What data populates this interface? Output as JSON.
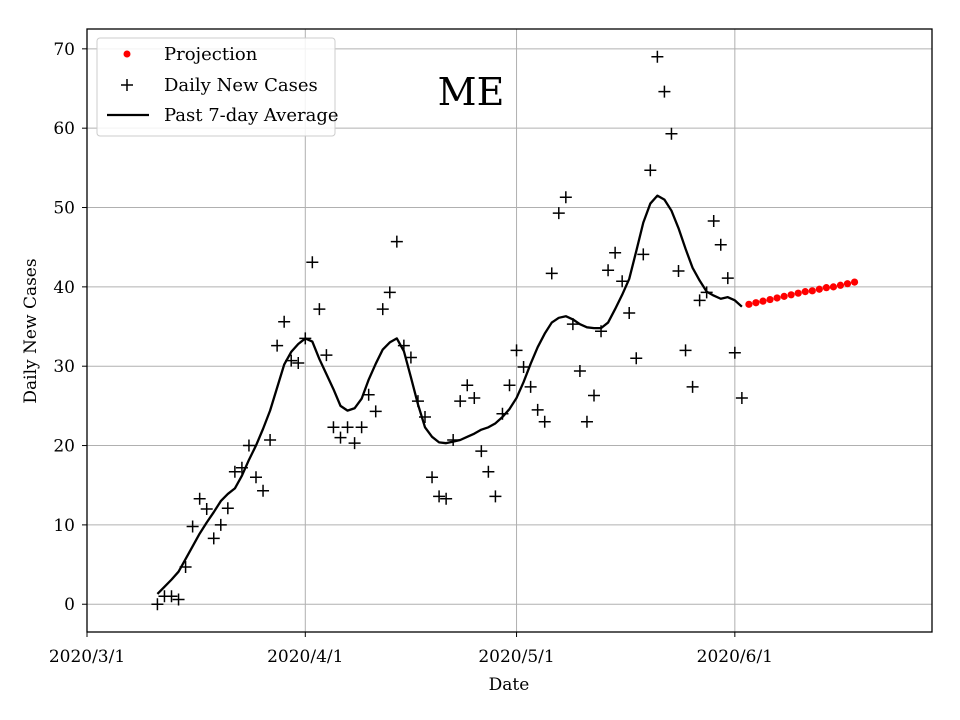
{
  "chart_data": {
    "type": "line",
    "title": "ME",
    "xlabel": "Date",
    "ylabel": "Daily New Cases",
    "x_domain_days": [
      0,
      120
    ],
    "ylim": [
      -3.5,
      72.5
    ],
    "xticks": [
      {
        "day": 0,
        "label": "2020/3/1"
      },
      {
        "day": 31,
        "label": "2020/4/1"
      },
      {
        "day": 61,
        "label": "2020/5/1"
      },
      {
        "day": 92,
        "label": "2020/6/1"
      }
    ],
    "yticks": [
      0,
      10,
      20,
      30,
      40,
      50,
      60,
      70
    ],
    "grid": true,
    "legend_position": "top-left",
    "series": [
      {
        "name": "Projection",
        "kind": "dots",
        "color": "#ff0000",
        "start_day": 94,
        "values": [
          37.8,
          38.0,
          38.2,
          38.4,
          38.6,
          38.8,
          39.0,
          39.2,
          39.4,
          39.5,
          39.7,
          39.9,
          40.0,
          40.2,
          40.4,
          40.6
        ]
      },
      {
        "name": "Daily New Cases",
        "kind": "plus",
        "color": "#000000",
        "start_day": 10,
        "values": [
          0,
          1,
          1,
          0.6,
          4.7,
          9.8,
          13.3,
          12.0,
          8.3,
          10.0,
          12.1,
          16.7,
          17.2,
          20.0,
          16.0,
          14.3,
          20.7,
          32.6,
          35.6,
          30.7,
          30.4,
          33.5,
          43.1,
          37.2,
          31.4,
          22.3,
          21.0,
          22.3,
          20.3,
          22.3,
          26.4,
          24.3,
          37.2,
          39.3,
          45.7,
          32.6,
          31.1,
          25.6,
          23.6,
          16.0,
          13.6,
          13.3,
          20.7,
          25.6,
          27.6,
          26.0,
          19.3,
          16.7,
          13.6,
          24.0,
          27.6,
          32.0,
          29.9,
          27.4,
          24.5,
          23.0,
          41.7,
          49.3,
          51.3,
          35.3,
          29.4,
          23.0,
          26.3,
          34.4,
          42.1,
          44.3,
          40.7,
          36.7,
          31.0,
          44.1,
          54.7,
          69.0,
          64.6,
          59.3,
          42.0,
          32.0,
          27.4,
          38.3,
          39.3,
          48.3,
          45.3,
          41.1,
          31.7,
          26.0
        ]
      },
      {
        "name": "Past 7-day Average",
        "kind": "line",
        "color": "#000000",
        "start_day": 10,
        "values": [
          1.3,
          2.2,
          3.1,
          4.1,
          5.7,
          7.3,
          8.9,
          10.3,
          11.6,
          13.0,
          13.9,
          14.6,
          16.2,
          18.2,
          20.0,
          22.1,
          24.4,
          27.3,
          30.2,
          31.8,
          32.8,
          33.5,
          33.1,
          30.9,
          29.0,
          27.1,
          25.0,
          24.4,
          24.7,
          25.9,
          28.3,
          30.3,
          32.1,
          33.0,
          33.5,
          31.9,
          28.6,
          25.2,
          22.3,
          21.1,
          20.4,
          20.3,
          20.5,
          20.7,
          21.1,
          21.5,
          22.0,
          22.3,
          22.8,
          23.6,
          24.6,
          26.0,
          28.0,
          30.3,
          32.4,
          34.1,
          35.5,
          36.1,
          36.3,
          35.9,
          35.3,
          34.9,
          34.8,
          34.8,
          35.5,
          37.2,
          39.0,
          41.0,
          44.5,
          48.1,
          50.5,
          51.5,
          51.0,
          49.6,
          47.4,
          44.8,
          42.4,
          40.8,
          39.4,
          38.9,
          38.5,
          38.7,
          38.3,
          37.5
        ]
      }
    ]
  }
}
